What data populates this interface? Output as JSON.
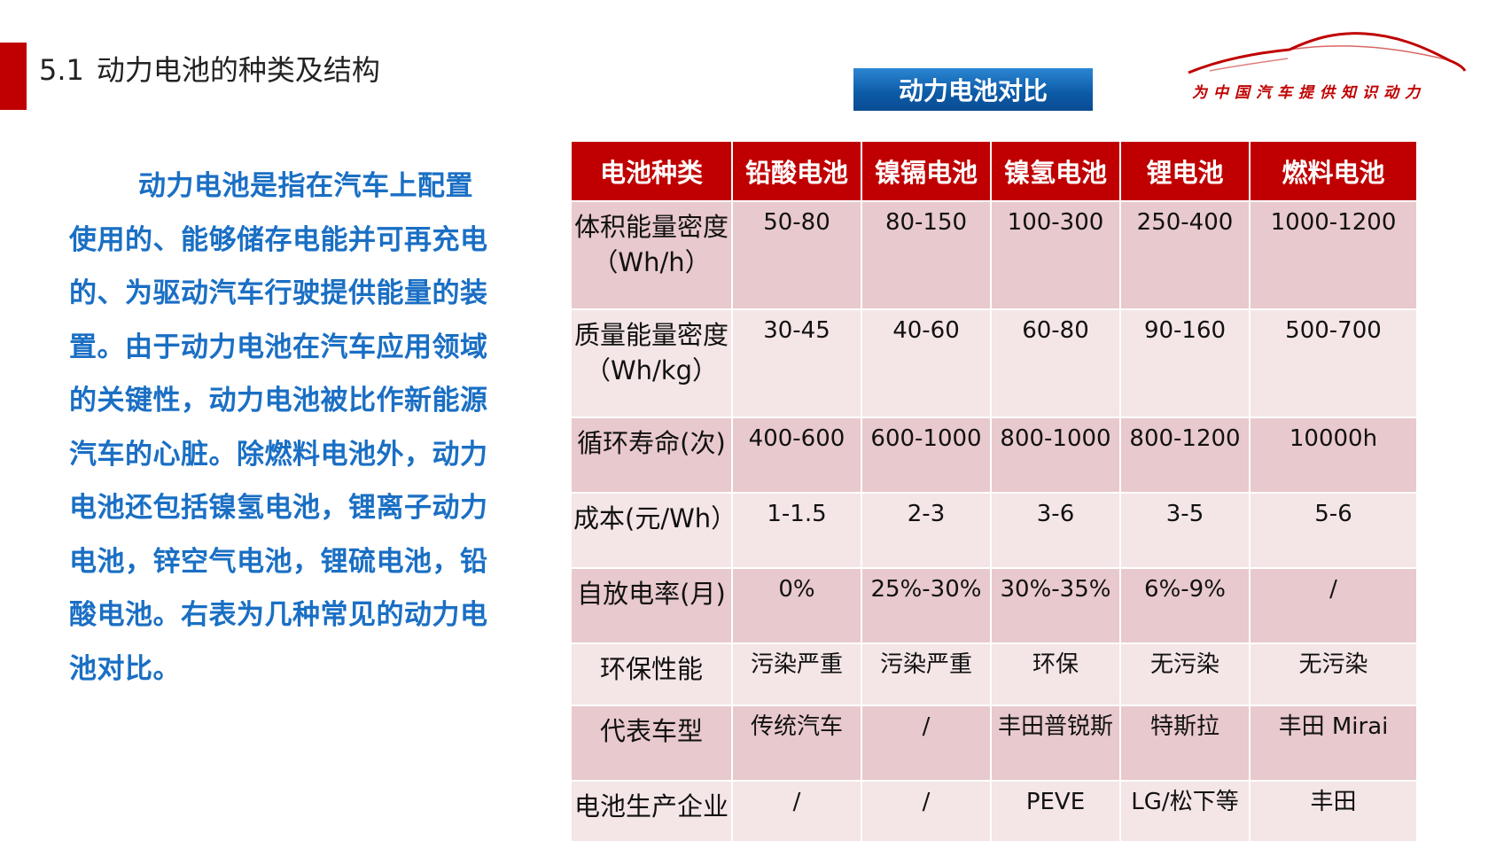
{
  "section": {
    "number": "5.1",
    "title": "动力电池的种类及结构"
  },
  "badge": "动力电池对比",
  "logo": {
    "slogan": "为中国汽车提供知识动力"
  },
  "intro_text": "动力电池是指在汽车上配置使用的、能够储存电能并可再充电的、为驱动汽车行驶提供能量的装置。由于动力电池在汽车应用领域的关键性，动力电池被比作新能源汽车的心脏。除燃料电池外，动力电池还包括镍氢电池，锂离子动力电池，锌空气电池，锂硫电池，铅酸电池。右表为几种常见的动力电池对比。",
  "table": {
    "headers": [
      "电池种类",
      "铅酸电池",
      "镍镉电池",
      "镍氢电池",
      "锂电池",
      "燃料电池"
    ],
    "rows": [
      [
        "体积能量密度（Wh/h）",
        "50-80",
        "80-150",
        "100-300",
        "250-400",
        "1000-1200"
      ],
      [
        "质量能量密度（Wh/kg）",
        "30-45",
        "40-60",
        "60-80",
        "90-160",
        "500-700"
      ],
      [
        "循环寿命(次)",
        "400-600",
        "600-1000",
        "800-1000",
        "800-1200",
        "10000h"
      ],
      [
        "成本(元/Wh）",
        "1-1.5",
        "2-3",
        "3-6",
        "3-5",
        "5-6"
      ],
      [
        "自放电率(月)",
        "0%",
        "25%-30%",
        "30%-35%",
        "6%-9%",
        "/"
      ],
      [
        "环保性能",
        "污染严重",
        "污染严重",
        "环保",
        "无污染",
        "无污染"
      ],
      [
        "代表车型",
        "传统汽车",
        "/",
        "丰田普锐斯",
        "特斯拉",
        "丰田 Mirai"
      ],
      [
        "电池生产企业",
        "/",
        "/",
        "PEVE",
        "LG/松下等",
        "丰田"
      ]
    ]
  },
  "colors": {
    "accent_red": "#c00000",
    "intro_blue": "#1a6fc4",
    "badge_blue": "#0c5aa6",
    "row_dark": "#e8c9cd",
    "row_light": "#f4e5e6"
  }
}
